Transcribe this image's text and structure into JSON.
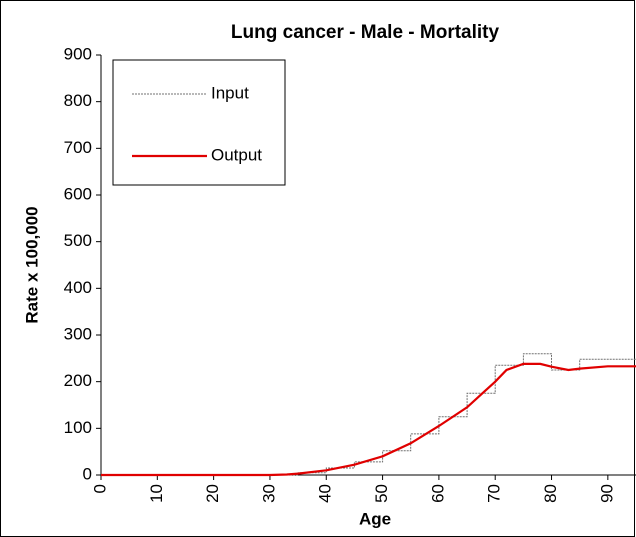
{
  "chart_data": {
    "type": "line",
    "title": "Lung cancer - Male - Mortality",
    "xlabel": "Age",
    "ylabel": "Rate x 100,000",
    "xlim": [
      0,
      95
    ],
    "xticks": [
      0,
      10,
      20,
      30,
      40,
      50,
      60,
      70,
      80,
      90
    ],
    "ylim": [
      0,
      900
    ],
    "yticks": [
      0,
      100,
      200,
      300,
      400,
      500,
      600,
      700,
      800,
      900
    ],
    "grid": false,
    "legend": "top-left",
    "series": [
      {
        "name": "Input",
        "color": "#707070",
        "x": [
          0,
          35,
          35,
          40,
          40,
          45,
          45,
          50,
          50,
          55,
          55,
          60,
          60,
          65,
          65,
          70,
          70,
          75,
          75,
          80,
          80,
          85,
          85,
          95
        ],
        "values": [
          0,
          0,
          5,
          5,
          15,
          15,
          28,
          28,
          52,
          52,
          88,
          88,
          125,
          125,
          175,
          175,
          235,
          235,
          260,
          260,
          225,
          225,
          248,
          248
        ]
      },
      {
        "name": "Output",
        "color": "#e00000",
        "x": [
          0,
          30,
          33,
          35,
          40,
          45,
          50,
          55,
          60,
          65,
          68,
          70,
          72,
          75,
          78,
          80,
          83,
          85,
          90,
          95
        ],
        "values": [
          0,
          0,
          1,
          3,
          10,
          22,
          40,
          68,
          105,
          145,
          178,
          200,
          225,
          238,
          238,
          232,
          225,
          228,
          233,
          233
        ]
      }
    ]
  }
}
